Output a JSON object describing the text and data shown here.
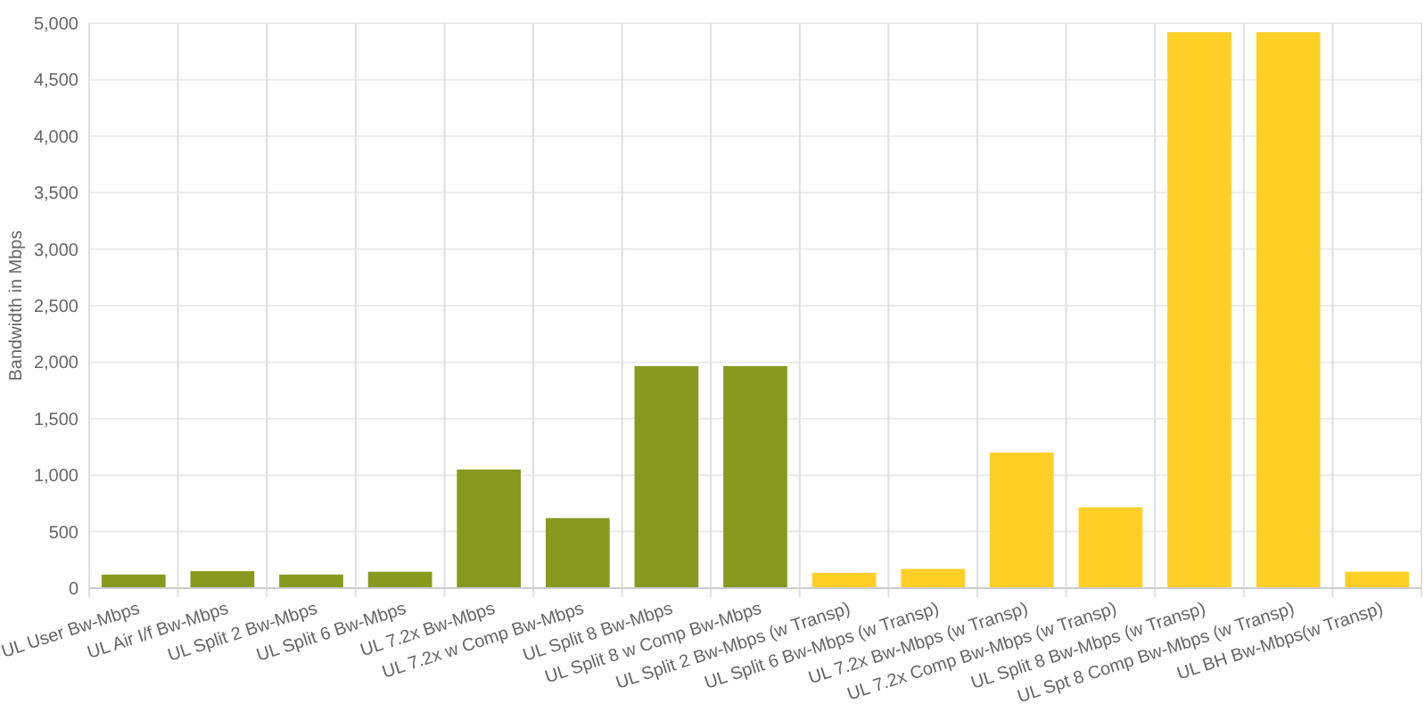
{
  "chart_data": {
    "type": "bar",
    "ylabel": "Bandwidth in Mbps",
    "categories": [
      "UL User Bw-Mbps",
      "UL Air I/f Bw-Mbps",
      "UL Split 2 Bw-Mbps",
      "UL Split 6 Bw-Mbps",
      "UL 7.2x Bw-Mbps",
      "UL 7.2x w Comp Bw-Mbps",
      "UL Split 8 Bw-Mbps",
      "UL Split 8 w Comp Bw-Mbps",
      "UL Split 2 Bw-Mbps (w Transp)",
      "UL Split 6 Bw-Mbps (w Transp)",
      "UL 7.2x Bw-Mbps (w Transp)",
      "UL 7.2x Comp Bw-Mbps (w Transp)",
      "UL Split 8 Bw-Mbps (w Transp)",
      "UL Spt 8 Comp Bw-Mbps (w Transp)",
      "UL BH Bw-Mbps(w Transp)"
    ],
    "values": [
      120,
      150,
      120,
      145,
      1050,
      620,
      1965,
      1965,
      135,
      170,
      1200,
      715,
      4920,
      4920,
      145
    ],
    "colors": [
      "#879a1d",
      "#879a1d",
      "#879a1d",
      "#879a1d",
      "#879a1d",
      "#879a1d",
      "#879a1d",
      "#879a1d",
      "#ffcf26",
      "#ffcf26",
      "#ffcf26",
      "#ffcf26",
      "#ffcf26",
      "#ffcf26",
      "#ffcf26"
    ],
    "ylim": [
      0,
      5000
    ],
    "yticks": [
      {
        "value": 0,
        "label": "0"
      },
      {
        "value": 500,
        "label": "500"
      },
      {
        "value": 1000,
        "label": "1,000"
      },
      {
        "value": 1500,
        "label": "1,500"
      },
      {
        "value": 2000,
        "label": "2,000"
      },
      {
        "value": 2500,
        "label": "2,500"
      },
      {
        "value": 3000,
        "label": "3,000"
      },
      {
        "value": 3500,
        "label": "3,500"
      },
      {
        "value": 4000,
        "label": "4,000"
      },
      {
        "value": 4500,
        "label": "4,500"
      },
      {
        "value": 5000,
        "label": "5,000"
      }
    ],
    "grid": true
  }
}
